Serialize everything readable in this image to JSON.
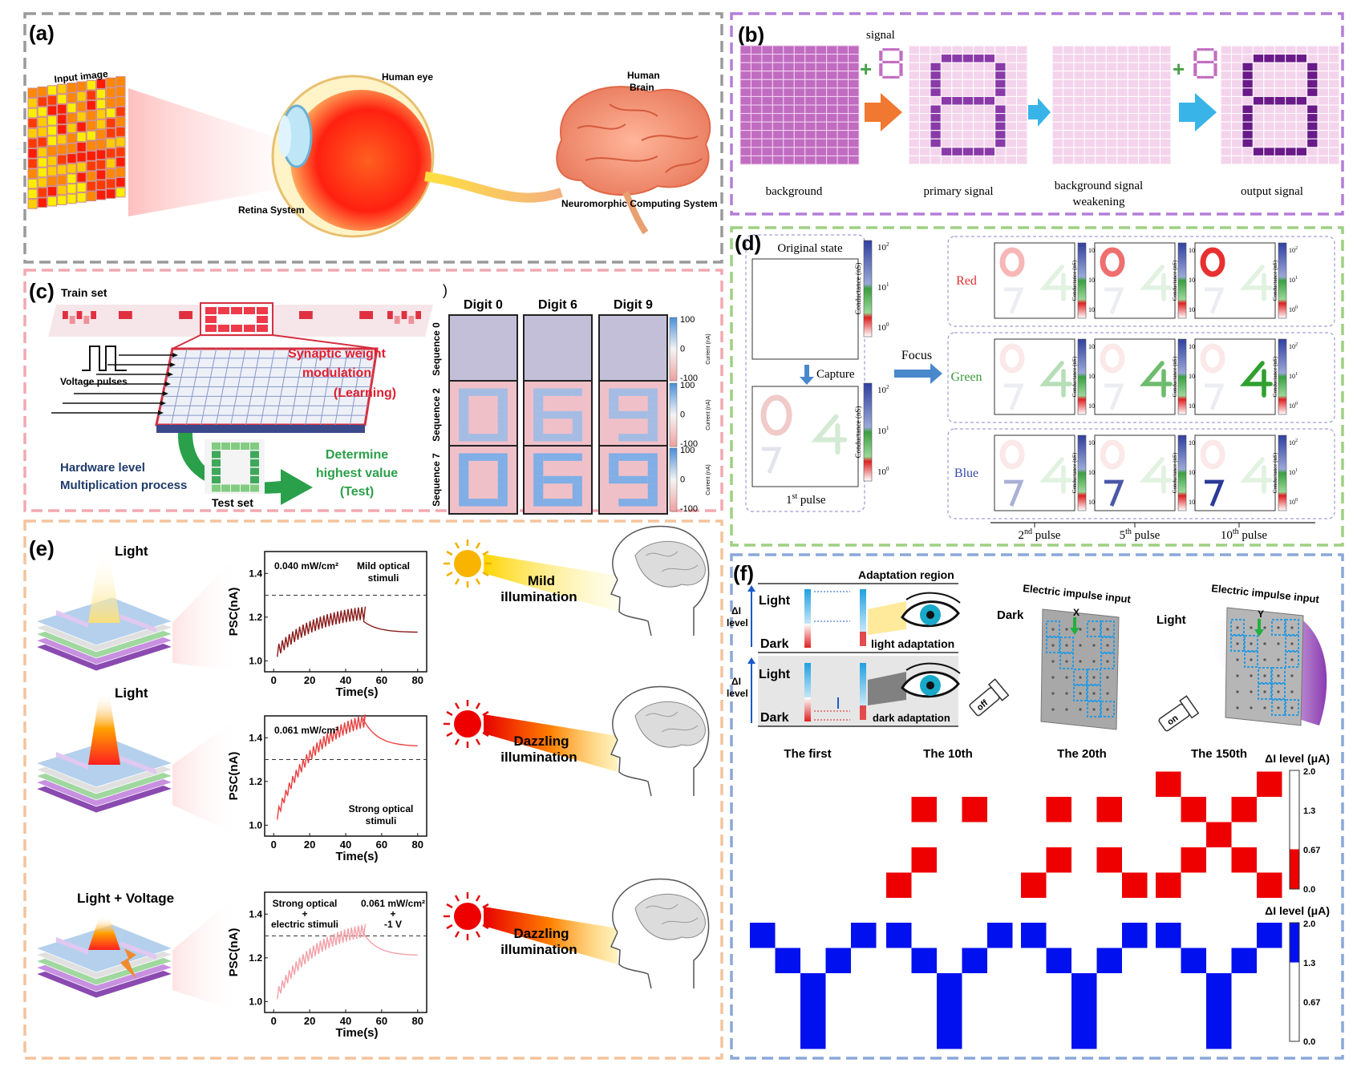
{
  "panels": {
    "a": {
      "tag": "(a)",
      "input_label": "Input image",
      "eye_label": "Human eye",
      "brain_label": [
        "Human",
        "Brain"
      ],
      "retina_label": "Retina System",
      "neuro_label": "Neuromorphic Computing System"
    },
    "b": {
      "tag": "(b)",
      "signal_label": "signal",
      "plus": "+",
      "digit": "8",
      "captions": [
        "background",
        "primary signal",
        "background signal",
        "weakening",
        "output signal"
      ]
    },
    "c": {
      "tag": "(c)",
      "train_label": "Train set",
      "pulses_label": "Voltage pulses",
      "weight_lines": [
        "Synaptic weight",
        "modulation",
        "(Learning)"
      ],
      "hardware_lines": [
        "Hardware level",
        "Multiplication process"
      ],
      "determine_lines": [
        "Determine",
        "highest value",
        "(Test)"
      ],
      "test_label": "Test set",
      "stray_paren": ")",
      "digit_headers": [
        "Digit 0",
        "Digit 6",
        "Digit 9"
      ],
      "sequence_labels": [
        "Sequence 0",
        "Sequence 2",
        "Sequence 7"
      ],
      "colorbar_ticks": [
        "100",
        "0",
        "-100"
      ],
      "colorbar_label": "Current (nA)"
    },
    "d": {
      "tag": "(d)",
      "original_label": "Original state",
      "capture_label": "Capture",
      "focus_label": "Focus",
      "pulse1": "1",
      "pulse1_sup": "st",
      "pulse_word": " pulse",
      "row_labels": [
        "Red",
        "Green",
        "Blue"
      ],
      "row_colors": [
        "#e03030",
        "#3a9a3a",
        "#3a4aa8"
      ],
      "pulse_labels": [
        {
          "n": "2",
          "sup": "nd"
        },
        {
          "n": "5",
          "sup": "th"
        },
        {
          "n": "10",
          "sup": "th"
        }
      ],
      "cb_ticks": [
        {
          "b": "10",
          "e": "2"
        },
        {
          "b": "10",
          "e": "1"
        },
        {
          "b": "10",
          "e": "0"
        }
      ],
      "cb_label": "Conductance (nS)"
    },
    "e": {
      "tag": "(e)",
      "light_labels": [
        "Light",
        "Light",
        "Light + Voltage"
      ],
      "plots": [
        {
          "note1": "0.040 mW/cm²",
          "note2": [
            "Mild  optical",
            "stimuli"
          ],
          "color": "#8b1a1a",
          "peak": 1.22,
          "start": 1.02,
          "end": 1.13
        },
        {
          "note1": "0.061 mW/cm²",
          "note2": [
            "Strong  optical",
            "stimuli"
          ],
          "color": "#e84040",
          "peak": 1.52,
          "start": 1.0,
          "end": 1.36
        },
        {
          "note1": "Strong optical",
          "note1b": "+",
          "note1c": "electric stimuli",
          "note2": [
            "0.061 mW/cm²",
            "+",
            "-1 V"
          ],
          "color": "#f3a0a8",
          "peak": 1.35,
          "start": 1.0,
          "end": 1.21
        }
      ],
      "ylabel": "PSC(nA)",
      "xlabel": "Time(s)",
      "xticks": [
        "0",
        "20",
        "40",
        "60",
        "80"
      ],
      "yticks": [
        "1.4",
        "1.2",
        "1.0"
      ],
      "threshold": 1.3,
      "illum": [
        [
          "Mild",
          "illumination"
        ],
        [
          "Dazzling",
          "illumination"
        ],
        [
          "Dazzling",
          "illumination"
        ]
      ]
    },
    "f": {
      "tag": "(f)",
      "adapt_label": "Adaptation region",
      "delta_label": [
        "ΔI",
        "level"
      ],
      "light": "Light",
      "dark": "Dark",
      "light_adapt": "light adaptation",
      "dark_adapt": "dark adaptation",
      "off": "off",
      "on": "on",
      "impulse_label": "Electric impulse input",
      "x": "X",
      "y": "Y",
      "dark_side": "Dark",
      "light_side": "Light",
      "col_titles": [
        "The first",
        "The 10th",
        "The 20th",
        "The 150th"
      ],
      "cb_title": "ΔI level (μA)",
      "cb_ticks": [
        "2.0",
        "1.3",
        "0.67",
        "0.0"
      ]
    }
  }
}
